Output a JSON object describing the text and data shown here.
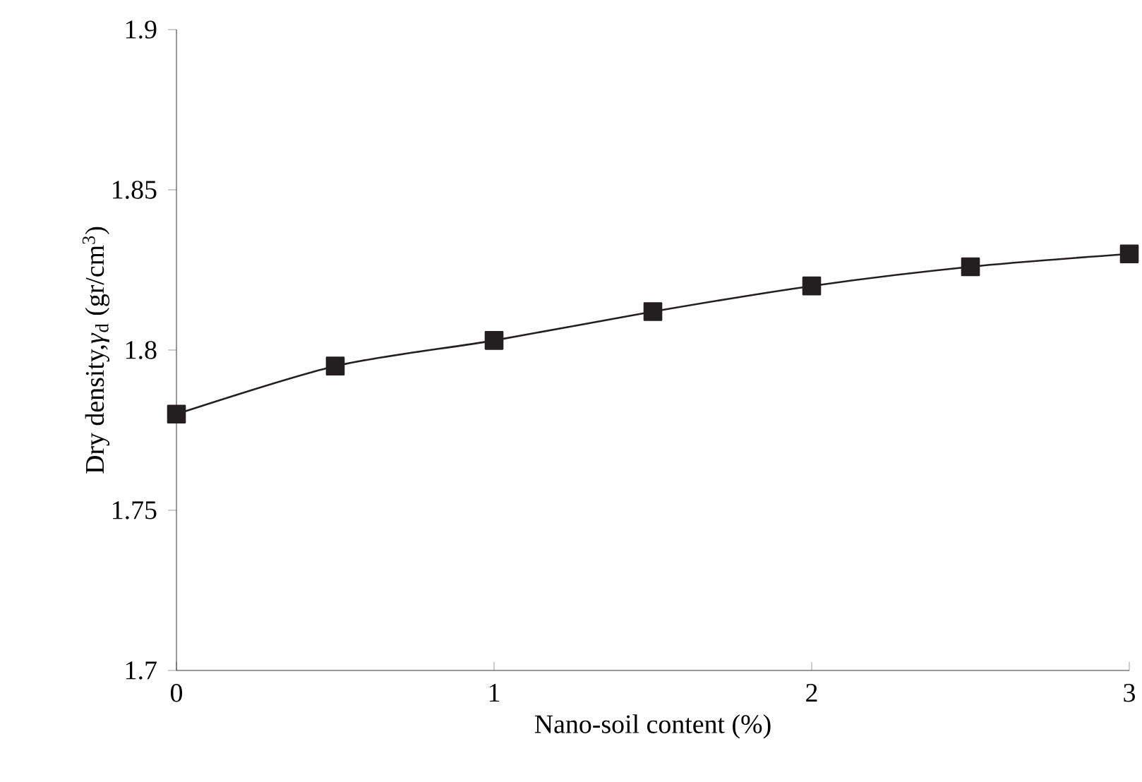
{
  "chart_data": {
    "type": "line",
    "xlabel": "Nano-soil content (%)",
    "ylabel": "Dry density,*γ*$_{d}$ (gr/cm$^{3}$)",
    "x": [
      0,
      0.5,
      1,
      1.5,
      2,
      2.5,
      3
    ],
    "series": [
      {
        "color": "#231f20",
        "values": [
          1.78,
          1.795,
          1.803,
          1.812,
          1.82,
          1.826,
          1.83
        ]
      }
    ],
    "xlim": [
      0,
      3
    ],
    "xticks": [
      0,
      1,
      2,
      3
    ],
    "ylim": [
      1.7,
      1.9
    ],
    "yticks": [
      1.7,
      1.75,
      1.8,
      1.85,
      1.9
    ],
    "marker": "square",
    "line_style": "solid",
    "grid": false
  }
}
